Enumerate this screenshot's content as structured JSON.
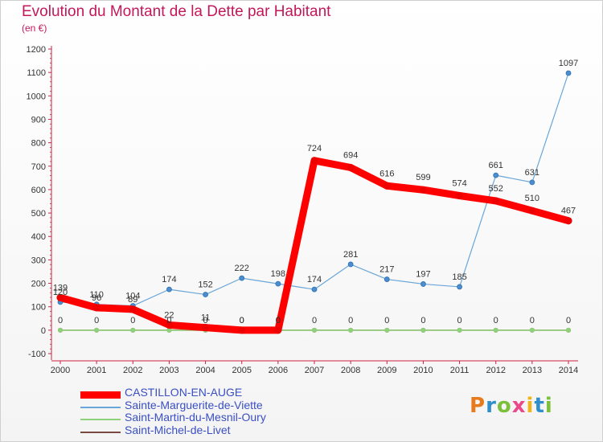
{
  "title": "Evolution du Montant de la Dette par Habitant",
  "unit": "(en €)",
  "logo": "Proxiti",
  "chart_data": {
    "type": "line",
    "title": "Evolution du Montant de la Dette par Habitant",
    "ylabel": "(en €)",
    "xlabel": "",
    "x": [
      "2000",
      "2001",
      "2002",
      "2003",
      "2004",
      "2005",
      "2006",
      "2007",
      "2008",
      "2009",
      "2010",
      "2011",
      "2012",
      "2013",
      "2014"
    ],
    "ylim": [
      -100,
      1200
    ],
    "yticks": [
      -100,
      0,
      100,
      200,
      300,
      400,
      500,
      600,
      700,
      800,
      900,
      1000,
      1100,
      1200
    ],
    "grid": false,
    "legend_placement": "bottom-left",
    "series": [
      {
        "name": "CASTILLON-EN-AUGE",
        "color": "#ff0000",
        "values": [
          139,
          96,
          89,
          22,
          11,
          0,
          0,
          724,
          694,
          616,
          599,
          574,
          552,
          510,
          467
        ],
        "labels": [
          "139",
          "96",
          "89",
          "22",
          "11",
          "0",
          "0",
          "724",
          "694",
          "616",
          "599",
          "574",
          "552",
          "510",
          "467"
        ]
      },
      {
        "name": "Sainte-Marguerite-de-Viette",
        "color": "#6aa6d8",
        "values": [
          120,
          110,
          104,
          174,
          152,
          222,
          198,
          174,
          281,
          217,
          197,
          185,
          661,
          631,
          1097
        ],
        "labels": [
          "120",
          "110",
          "104",
          "174",
          "152",
          "222",
          "198",
          "174",
          "281",
          "217",
          "197",
          "185",
          "661",
          "631",
          "1097"
        ]
      },
      {
        "name": "Saint-Martin-du-Mesnil-Oury",
        "color": "#8fd17a",
        "values": [
          0,
          0,
          0,
          0,
          0,
          0,
          0,
          0,
          0,
          0,
          0,
          0,
          0,
          0,
          0
        ],
        "labels": [
          "0",
          "0",
          "0",
          "0",
          "0",
          "0",
          "0",
          "0",
          "0",
          "0",
          "0",
          "0",
          "0",
          "0",
          "0"
        ]
      },
      {
        "name": "Saint-Michel-de-Livet",
        "color": "#7a4a40",
        "values": [
          0,
          0,
          0,
          0,
          0,
          0,
          0,
          0,
          0,
          0,
          0,
          0,
          0,
          0,
          0
        ],
        "labels": []
      }
    ]
  }
}
